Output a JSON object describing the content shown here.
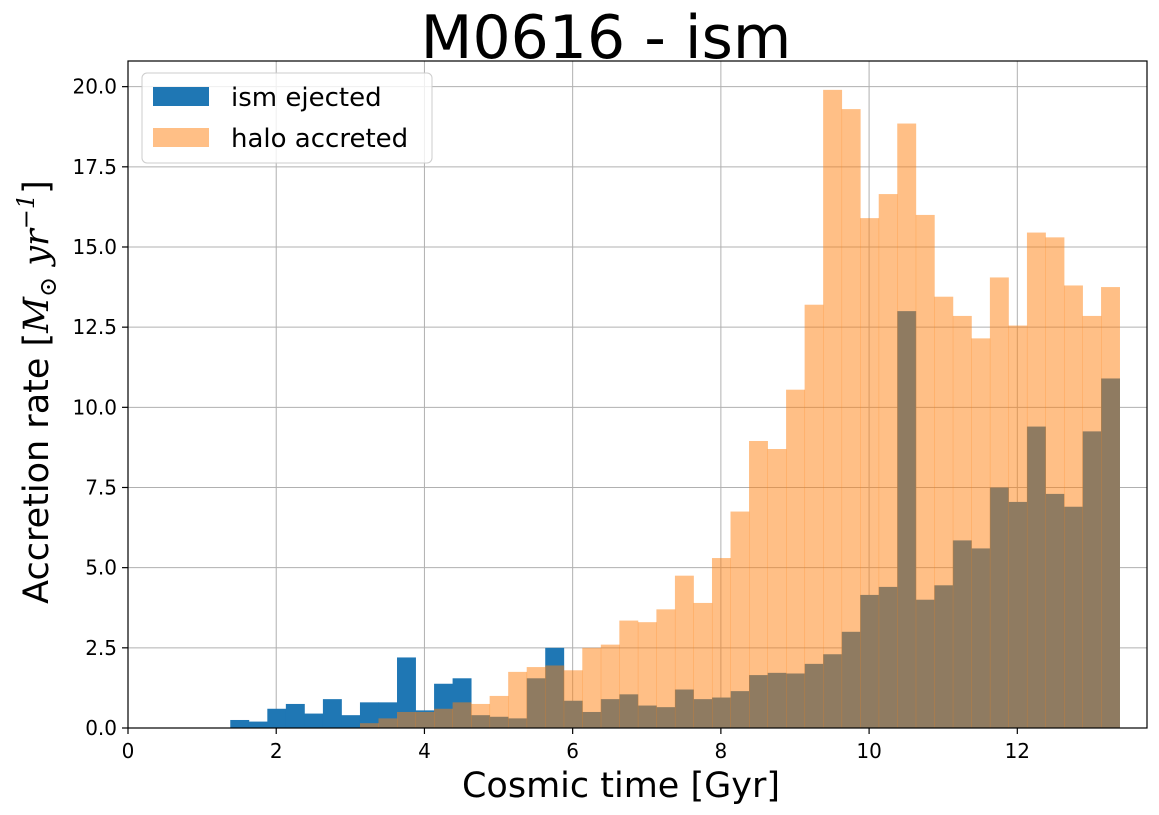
{
  "chart_data": {
    "type": "bar",
    "title": "M0616 - ism",
    "xlabel": "Cosmic time [Gyr]",
    "ylabel": {
      "prefix": "Accretion rate [",
      "symbol": "M",
      "subscript": "⊙",
      "unit": " yr",
      "superscript": "−1",
      "suffix": "]"
    },
    "xlim": [
      0,
      13.75
    ],
    "ylim": [
      0,
      20.8
    ],
    "x_ticks": [
      0,
      2,
      4,
      6,
      8,
      10,
      12
    ],
    "x_tick_labels": [
      "0",
      "2",
      "4",
      "6",
      "8",
      "10",
      "12"
    ],
    "y_ticks": [
      0,
      2.5,
      5,
      7.5,
      10,
      12.5,
      15,
      17.5,
      20
    ],
    "y_tick_labels": [
      "0.0",
      "2.5",
      "5.0",
      "7.5",
      "10.0",
      "12.5",
      "15.0",
      "17.5",
      "20.0"
    ],
    "grid": true,
    "legend_placement": "top-left",
    "bin_edges": [
      1.38,
      1.63,
      1.88,
      2.13,
      2.38,
      2.63,
      2.88,
      3.13,
      3.38,
      3.63,
      3.88,
      4.13,
      4.38,
      4.63,
      4.88,
      5.13,
      5.38,
      5.63,
      5.88,
      6.13,
      6.38,
      6.63,
      6.88,
      7.13,
      7.38,
      7.63,
      7.88,
      8.13,
      8.38,
      8.63,
      8.88,
      9.13,
      9.38,
      9.63,
      9.88,
      10.13,
      10.38,
      10.63,
      10.88,
      11.13,
      11.38,
      11.63,
      11.88,
      12.13,
      12.38,
      12.63,
      12.88,
      13.13,
      13.38
    ],
    "series": [
      {
        "name": "ism ejected",
        "color": "#1f77b4",
        "opacity": 1.0,
        "values": [
          0.25,
          0.2,
          0.6,
          0.75,
          0.45,
          0.9,
          0.4,
          0.8,
          0.8,
          2.2,
          0.55,
          1.38,
          1.55,
          0.4,
          0.35,
          0.3,
          1.55,
          2.5,
          0.85,
          0.5,
          0.9,
          1.05,
          0.7,
          0.65,
          1.2,
          0.9,
          0.95,
          1.15,
          1.65,
          1.72,
          1.7,
          2.0,
          2.3,
          3.0,
          4.15,
          4.4,
          13.0,
          4.0,
          4.45,
          5.85,
          5.6,
          7.5,
          7.05,
          9.4,
          7.3,
          6.9,
          9.25,
          10.9
        ]
      },
      {
        "name": "halo accreted",
        "color": "#ff7f0e",
        "opacity": 0.5,
        "values": [
          0,
          0,
          0,
          0,
          0,
          0,
          0,
          0.15,
          0.3,
          0.5,
          0.5,
          0.6,
          0.8,
          0.75,
          1.0,
          1.75,
          1.9,
          1.95,
          1.8,
          2.5,
          2.6,
          3.35,
          3.3,
          3.7,
          4.75,
          3.9,
          5.3,
          6.75,
          8.95,
          8.7,
          10.55,
          13.2,
          19.9,
          19.3,
          15.9,
          16.65,
          18.85,
          16.0,
          13.45,
          12.85,
          12.15,
          14.05,
          12.55,
          15.45,
          15.3,
          13.8,
          12.85,
          13.75
        ]
      }
    ]
  }
}
